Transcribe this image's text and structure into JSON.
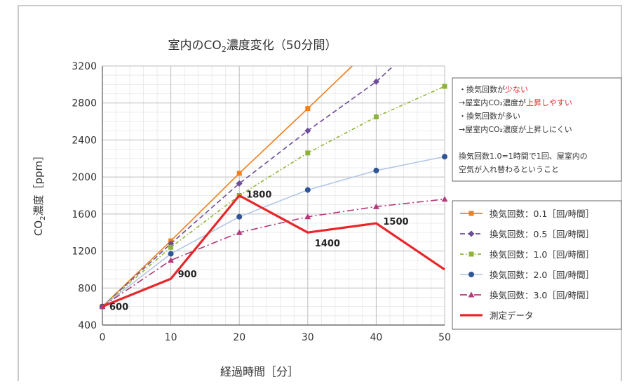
{
  "chart_data": {
    "type": "line",
    "title_prefix": "室内のCO",
    "title_sub": "2",
    "title_suffix": "濃度変化（50分間）",
    "xlabel": "経過時間［分］",
    "ylabel_prefix": "CO",
    "ylabel_sub": "2",
    "ylabel_suffix": "濃度［ppm］",
    "xlim": [
      0,
      50
    ],
    "ylim": [
      400,
      3200
    ],
    "x_ticks": [
      0,
      10,
      20,
      30,
      40,
      50
    ],
    "y_ticks": [
      400,
      800,
      1200,
      1600,
      2000,
      2400,
      2800,
      3200
    ],
    "grid": true,
    "legend_position": "right",
    "series": [
      {
        "name": "換気回数：0.1［回/時間］",
        "color": "#f07f1e",
        "dash": "solid",
        "marker": "square",
        "x": [
          0,
          10,
          20,
          30,
          36.5
        ],
        "y": [
          600,
          1310,
          2040,
          2740,
          3200
        ],
        "marker_x": [
          0,
          10,
          20,
          30
        ],
        "marker_y": [
          600,
          1310,
          2040,
          2740
        ]
      },
      {
        "name": "換気回数：0.5［回/時間］",
        "color": "#6d4c9a",
        "dash": "dashed",
        "marker": "diamond",
        "x": [
          0,
          10,
          20,
          30,
          40,
          42.5
        ],
        "y": [
          600,
          1280,
          1930,
          2500,
          3030,
          3200
        ],
        "marker_x": [
          0,
          10,
          20,
          30,
          40
        ],
        "marker_y": [
          600,
          1280,
          1930,
          2500,
          3030
        ]
      },
      {
        "name": "換気回数：1.0［回/時間］",
        "color": "#8fb339",
        "dash": "dotdash",
        "marker": "square",
        "x": [
          0,
          10,
          20,
          30,
          40,
          50
        ],
        "y": [
          600,
          1240,
          1800,
          2260,
          2650,
          2980
        ],
        "marker_x": [
          0,
          10,
          20,
          30,
          40,
          50
        ],
        "marker_y": [
          600,
          1240,
          1800,
          2260,
          2650,
          2980
        ]
      },
      {
        "name": "換気回数：2.0［回/時間］",
        "color": "#2f5597",
        "line_color": "#b4c7e7",
        "dash": "solid",
        "marker": "circle",
        "x": [
          0,
          10,
          20,
          30,
          40,
          50
        ],
        "y": [
          600,
          1170,
          1570,
          1860,
          2070,
          2220
        ],
        "marker_x": [
          0,
          10,
          20,
          30,
          40,
          50
        ],
        "marker_y": [
          600,
          1170,
          1570,
          1860,
          2070,
          2220
        ]
      },
      {
        "name": "換気回数：3.0［回/時間］",
        "color": "#b23a7a",
        "dash": "dashdot",
        "marker": "triangle",
        "x": [
          0,
          10,
          20,
          30,
          40,
          50
        ],
        "y": [
          600,
          1100,
          1400,
          1570,
          1680,
          1760
        ],
        "marker_x": [
          0,
          10,
          20,
          30,
          40,
          50
        ],
        "marker_y": [
          600,
          1100,
          1400,
          1570,
          1680,
          1760
        ]
      },
      {
        "name": "測定データ",
        "color": "#e8262a",
        "dash": "solid",
        "marker": "none",
        "thick": true,
        "x": [
          0,
          10,
          20,
          30,
          40,
          50
        ],
        "y": [
          600,
          900,
          1800,
          1400,
          1500,
          1000
        ],
        "marker_x": [],
        "marker_y": []
      }
    ],
    "data_labels": [
      {
        "text": "600",
        "x": 0,
        "y": 600
      },
      {
        "text": "900",
        "x": 10,
        "y": 900
      },
      {
        "text": "1800",
        "x": 20,
        "y": 1800
      },
      {
        "text": "1400",
        "x": 30,
        "y": 1400
      },
      {
        "text": "1500",
        "x": 40,
        "y": 1500
      }
    ],
    "note_lines": [
      [
        {
          "t": "・換気回数が"
        },
        {
          "t": "少ない",
          "c": "#e8262a"
        }
      ],
      [
        {
          "t": "→屋室内CO₂濃度が"
        },
        {
          "t": "上昇しやすい",
          "c": "#e8262a"
        }
      ],
      [
        {
          "t": "・換気回数が多い"
        }
      ],
      [
        {
          "t": "→屋室内CO₂濃度が上昇しにくい"
        }
      ],
      [
        {
          "t": ""
        }
      ],
      [
        {
          "t": "換気回数1.0=1時間で1回、屋室内の"
        }
      ],
      [
        {
          "t": "空気が入れ替わるということ"
        }
      ]
    ]
  }
}
